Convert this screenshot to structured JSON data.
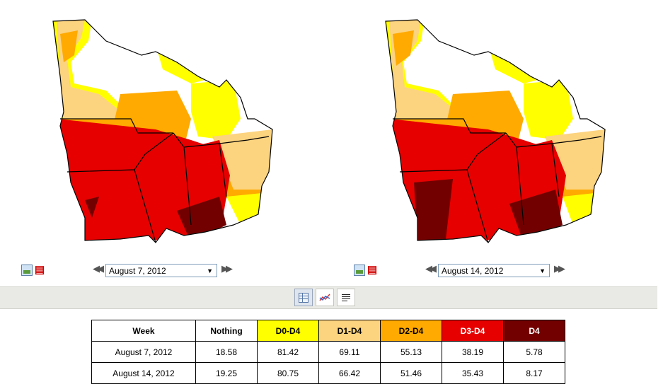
{
  "maps": {
    "left": {
      "date_label": "August 7, 2012",
      "drought_colors": [
        "#ffff00",
        "#fcd37f",
        "#ffaa00",
        "#e60000",
        "#730000"
      ]
    },
    "right": {
      "date_label": "August 14, 2012",
      "drought_colors": [
        "#ffff00",
        "#fcd37f",
        "#ffaa00",
        "#e60000",
        "#730000"
      ]
    }
  },
  "controls": {
    "image_icon": "image-icon",
    "pdf_icon": "pdf-icon",
    "prev_icon": "double-left-arrow-icon",
    "next_icon": "double-right-arrow-icon"
  },
  "toolbar": {
    "buttons": [
      "table-view-icon",
      "chart-view-icon",
      "text-view-icon"
    ],
    "active": "table-view-icon"
  },
  "table": {
    "headers": [
      "Week",
      "Nothing",
      "D0-D4",
      "D1-D4",
      "D2-D4",
      "D3-D4",
      "D4"
    ],
    "header_colors": [
      "#ffffff",
      "#ffffff",
      "#ffff00",
      "#fcd37f",
      "#ffaa00",
      "#e60000",
      "#730000"
    ],
    "header_text_colors": [
      "#000000",
      "#000000",
      "#000000",
      "#000000",
      "#000000",
      "#ffffff",
      "#ffffff"
    ],
    "rows": [
      [
        "August 7, 2012",
        "18.58",
        "81.42",
        "69.11",
        "55.13",
        "38.19",
        "5.78"
      ],
      [
        "August 14, 2012",
        "19.25",
        "80.75",
        "66.42",
        "51.46",
        "35.43",
        "8.17"
      ]
    ]
  }
}
